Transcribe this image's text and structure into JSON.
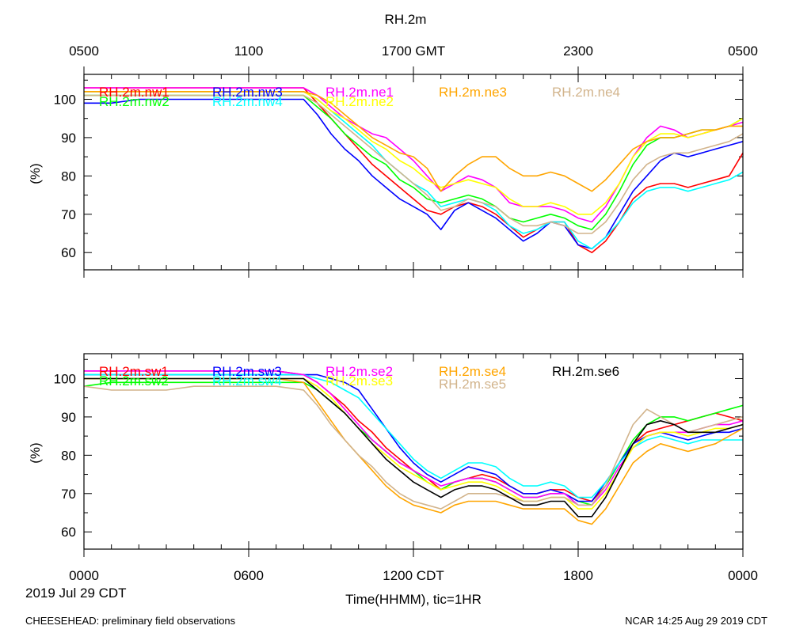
{
  "figure": {
    "title": "RH.2m",
    "top_time_labels": [
      "0500",
      "1100",
      "1700 GMT",
      "2300",
      "0500"
    ],
    "bottom_time_labels": [
      "0000",
      "0600",
      "1200 CDT",
      "1800",
      "0000"
    ],
    "date_label": "2019 Jul 29 CDT",
    "xlabel": "Time(HHMM), tic=1HR",
    "footer_left": "CHEESEHEAD: preliminary field observations",
    "footer_right": "NCAR 14:25 Aug 29 2019 CDT"
  },
  "chart_data": [
    {
      "type": "line",
      "panel": "top",
      "title": "RH.2m",
      "ylabel": "(%)",
      "xlim": [
        0,
        24
      ],
      "ylim": [
        55.5,
        106.5
      ],
      "yticks": [
        60,
        70,
        80,
        90,
        100
      ],
      "x": [
        0,
        1,
        2,
        3,
        4,
        5,
        6,
        7,
        8,
        8.5,
        9,
        9.5,
        10,
        10.5,
        11,
        11.5,
        12,
        12.5,
        13,
        13.5,
        14,
        14.5,
        15,
        15.5,
        16,
        16.5,
        17,
        17.5,
        18,
        18.5,
        19,
        19.5,
        20,
        20.5,
        21,
        21.5,
        22,
        22.5,
        23,
        23.5,
        24
      ],
      "series": [
        {
          "name": "RH.2m.nw1",
          "color": "#ff0000",
          "values": [
            103,
            103,
            103,
            103,
            103,
            103,
            103,
            103,
            103,
            99,
            95,
            91,
            87,
            83,
            80,
            77,
            74,
            71,
            70,
            72,
            73,
            72,
            70,
            67,
            64,
            66,
            68,
            68,
            62,
            60,
            63,
            68,
            74,
            77,
            78,
            78,
            77,
            78,
            79,
            80,
            86
          ]
        },
        {
          "name": "RH.2m.nw2",
          "color": "#00ff00",
          "values": [
            101,
            101,
            101,
            101,
            101,
            101,
            101,
            101,
            101,
            98,
            95,
            91,
            88,
            85,
            83,
            79,
            77,
            74,
            73,
            74,
            75,
            74,
            72,
            69,
            68,
            69,
            70,
            69,
            67,
            66,
            70,
            76,
            83,
            88,
            90,
            90,
            91,
            92,
            92,
            93,
            95
          ]
        },
        {
          "name": "RH.2m.nw3",
          "color": "#0000ff",
          "values": [
            99,
            99,
            100,
            100,
            100,
            100,
            100,
            100,
            100,
            96,
            91,
            87,
            84,
            80,
            77,
            74,
            72,
            70,
            66,
            71,
            73,
            71,
            69,
            66,
            63,
            65,
            68,
            67,
            62,
            61,
            64,
            70,
            76,
            80,
            84,
            86,
            85,
            86,
            87,
            88,
            89
          ]
        },
        {
          "name": "RH.2m.nw4",
          "color": "#00ffff",
          "values": [
            102,
            102,
            102,
            102,
            102,
            102,
            102,
            102,
            102,
            100,
            97,
            94,
            91,
            88,
            84,
            81,
            78,
            76,
            72,
            73,
            74,
            73,
            71,
            67,
            65,
            66,
            68,
            68,
            63,
            61,
            64,
            68,
            73,
            76,
            77,
            77,
            76,
            77,
            78,
            79,
            81
          ]
        },
        {
          "name": "RH.2m.ne1",
          "color": "#ff00ff",
          "values": [
            103,
            103,
            103,
            103,
            103,
            103,
            103,
            103,
            103,
            101,
            98,
            95,
            93,
            91,
            90,
            87,
            84,
            80,
            76,
            78,
            80,
            79,
            77,
            73,
            72,
            72,
            72,
            71,
            69,
            68,
            72,
            78,
            85,
            90,
            93,
            92,
            90,
            91,
            92,
            93,
            94
          ]
        },
        {
          "name": "RH.2m.ne2",
          "color": "#ffff00",
          "values": [
            102,
            102,
            102,
            102,
            102,
            102,
            102,
            102,
            102,
            100,
            97,
            95,
            92,
            89,
            87,
            84,
            82,
            79,
            77,
            78,
            79,
            78,
            77,
            74,
            72,
            72,
            73,
            72,
            70,
            70,
            73,
            78,
            85,
            89,
            91,
            91,
            90,
            91,
            92,
            93,
            95
          ]
        },
        {
          "name": "RH.2m.ne3",
          "color": "#ffa500",
          "values": [
            102,
            102,
            102,
            102,
            102,
            102,
            102,
            102,
            102,
            101,
            99,
            96,
            93,
            90,
            88,
            86,
            85,
            82,
            76,
            80,
            83,
            85,
            85,
            82,
            80,
            80,
            81,
            80,
            78,
            76,
            79,
            83,
            87,
            89,
            90,
            90,
            91,
            92,
            92,
            93,
            93
          ]
        },
        {
          "name": "RH.2m.ne4",
          "color": "#d2b48c",
          "values": [
            101,
            101,
            101,
            101,
            101,
            101,
            101,
            101,
            101,
            99,
            96,
            93,
            90,
            87,
            84,
            81,
            78,
            75,
            71,
            72,
            74,
            73,
            72,
            69,
            67,
            67,
            68,
            67,
            65,
            65,
            68,
            73,
            79,
            83,
            85,
            86,
            86,
            87,
            88,
            89,
            91
          ]
        }
      ]
    },
    {
      "type": "line",
      "panel": "bottom",
      "ylabel": "(%)",
      "xlim": [
        0,
        24
      ],
      "ylim": [
        55.5,
        106.5
      ],
      "yticks": [
        60,
        70,
        80,
        90,
        100
      ],
      "x": [
        0,
        1,
        2,
        3,
        4,
        5,
        6,
        7,
        8,
        8.5,
        9,
        9.5,
        10,
        10.5,
        11,
        11.5,
        12,
        12.5,
        13,
        13.5,
        14,
        14.5,
        15,
        15.5,
        16,
        16.5,
        17,
        17.5,
        18,
        18.5,
        19,
        19.5,
        20,
        20.5,
        21,
        21.5,
        22,
        22.5,
        23,
        23.5,
        24
      ],
      "series": [
        {
          "name": "RH.2m.sw1",
          "color": "#ff0000",
          "values": [
            102,
            102,
            102,
            102,
            102,
            102,
            102,
            102,
            101,
            99,
            96,
            93,
            89,
            86,
            82,
            79,
            76,
            74,
            71,
            73,
            74,
            75,
            74,
            72,
            70,
            70,
            71,
            71,
            69,
            68,
            72,
            78,
            83,
            86,
            87,
            88,
            89,
            90,
            91,
            90,
            89
          ]
        },
        {
          "name": "RH.2m.sw2",
          "color": "#00ff00",
          "values": [
            98,
            99,
            99,
            99,
            99,
            99,
            99,
            99,
            99,
            97,
            94,
            91,
            87,
            84,
            81,
            78,
            76,
            73,
            71,
            73,
            74,
            74,
            73,
            71,
            69,
            69,
            70,
            70,
            68,
            67,
            72,
            78,
            84,
            88,
            90,
            90,
            89,
            90,
            91,
            92,
            93
          ]
        },
        {
          "name": "RH.2m.sw3",
          "color": "#0000ff",
          "values": [
            101,
            101,
            101,
            101,
            101,
            101,
            101,
            101,
            101,
            101,
            100,
            99,
            97,
            92,
            87,
            82,
            78,
            75,
            73,
            75,
            77,
            76,
            75,
            72,
            70,
            70,
            71,
            70,
            68,
            68,
            73,
            78,
            83,
            85,
            86,
            85,
            84,
            85,
            86,
            86,
            87
          ]
        },
        {
          "name": "RH.2m.sw4",
          "color": "#00ffff",
          "values": [
            101,
            101,
            101,
            101,
            101,
            101,
            101,
            101,
            101,
            100,
            99,
            97,
            95,
            91,
            87,
            83,
            79,
            76,
            74,
            76,
            78,
            78,
            77,
            74,
            72,
            72,
            73,
            72,
            69,
            69,
            73,
            78,
            82,
            84,
            85,
            84,
            83,
            84,
            84,
            84,
            84
          ]
        },
        {
          "name": "RH.2m.se2",
          "color": "#ff00ff",
          "values": [
            102,
            102,
            102,
            102,
            102,
            102,
            102,
            102,
            101,
            99,
            96,
            92,
            88,
            84,
            81,
            78,
            76,
            74,
            72,
            73,
            74,
            74,
            73,
            71,
            69,
            69,
            70,
            70,
            67,
            67,
            71,
            77,
            82,
            85,
            86,
            86,
            86,
            87,
            88,
            88,
            89
          ]
        },
        {
          "name": "RH.2m.se3",
          "color": "#ffff00",
          "values": [
            100,
            100,
            100,
            100,
            100,
            100,
            100,
            100,
            100,
            98,
            95,
            91,
            87,
            83,
            80,
            77,
            75,
            73,
            71,
            72,
            73,
            73,
            72,
            70,
            68,
            68,
            69,
            69,
            66,
            66,
            70,
            76,
            82,
            85,
            86,
            86,
            85,
            86,
            87,
            87,
            88
          ]
        },
        {
          "name": "RH.2m.se4",
          "color": "#ffa500",
          "values": [
            100,
            100,
            100,
            100,
            100,
            100,
            100,
            100,
            99,
            94,
            89,
            84,
            80,
            76,
            72,
            69,
            67,
            66,
            65,
            67,
            68,
            68,
            68,
            67,
            66,
            66,
            66,
            66,
            63,
            62,
            66,
            72,
            78,
            81,
            83,
            82,
            81,
            82,
            83,
            85,
            87
          ]
        },
        {
          "name": "RH.2m.se5",
          "color": "#d2b48c",
          "values": [
            98,
            97,
            97,
            97,
            98,
            98,
            98,
            98,
            97,
            93,
            88,
            84,
            80,
            77,
            73,
            70,
            68,
            67,
            66,
            68,
            70,
            70,
            70,
            69,
            68,
            68,
            69,
            69,
            67,
            67,
            72,
            80,
            88,
            92,
            90,
            88,
            86,
            87,
            88,
            89,
            90
          ]
        },
        {
          "name": "RH.2m.se6",
          "color": "#000000",
          "values": [
            100,
            100,
            100,
            100,
            100,
            100,
            100,
            100,
            100,
            97,
            94,
            91,
            87,
            83,
            79,
            76,
            73,
            71,
            69,
            71,
            72,
            72,
            71,
            69,
            67,
            67,
            68,
            68,
            64,
            64,
            69,
            76,
            83,
            88,
            89,
            88,
            86,
            86,
            86,
            87,
            88
          ]
        }
      ]
    }
  ]
}
